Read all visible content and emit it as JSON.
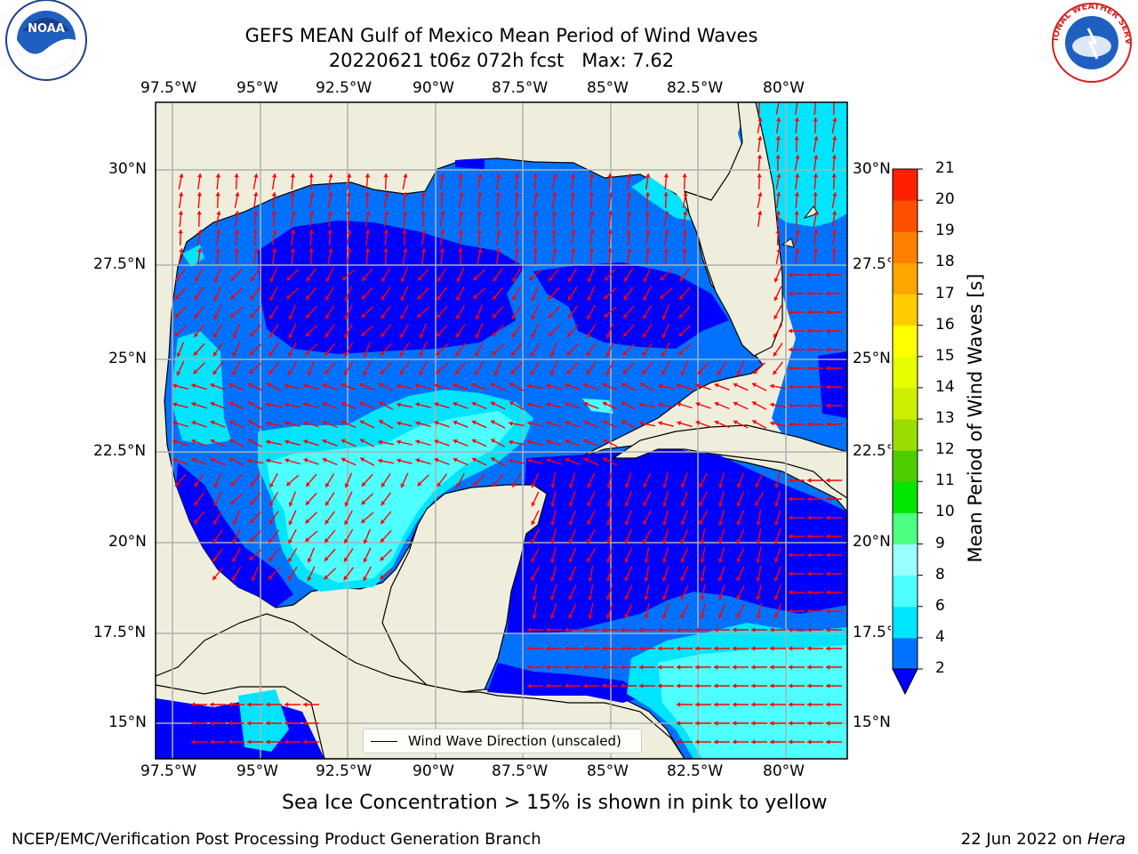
{
  "title": {
    "line1": "GEFS MEAN Gulf of Mexico Mean Period of Wind Waves",
    "line2": "20220621 t06z 072h fcst   Max: 7.62"
  },
  "axes": {
    "lon_labels": [
      "97.5°W",
      "95°W",
      "92.5°W",
      "90°W",
      "87.5°W",
      "85°W",
      "82.5°W",
      "80°W"
    ],
    "lat_labels_left": [
      "30°N",
      "27.5°N",
      "25°N",
      "22.5°N",
      "20°N",
      "17.5°N",
      "15°N"
    ],
    "lat_labels_right": [
      "30°N",
      "27.5°N",
      "25°N",
      "22.5°N",
      "20°N",
      "17.5°N",
      "15°N"
    ],
    "lon_range": [
      -98,
      -78.2
    ],
    "lat_range": [
      14,
      31.6
    ],
    "grid": true
  },
  "colorbar": {
    "label": "Mean Period of Wind Waves [s]",
    "ticks": [
      "21",
      "20",
      "19",
      "18",
      "17",
      "16",
      "15",
      "14",
      "13",
      "12",
      "11",
      "10",
      "9",
      "8",
      "6",
      "4",
      "2"
    ],
    "levels": [
      2,
      4,
      6,
      8,
      9,
      10,
      11,
      12,
      13,
      14,
      15,
      16,
      17,
      18,
      19,
      20,
      21
    ],
    "colors": [
      "#0072ff",
      "#00e5ff",
      "#4dffff",
      "#99ffff",
      "#4dff80",
      "#00e600",
      "#4dcc00",
      "#99dd00",
      "#ccee00",
      "#e6ff00",
      "#ffff00",
      "#ffcc00",
      "#ffa500",
      "#ff8000",
      "#ff5000",
      "#ff2000"
    ],
    "under_color": "#0000ff"
  },
  "legend": {
    "label": "Wind Wave Direction (unscaled)"
  },
  "colors": {
    "land": "#efeedc",
    "period_below_2": "#0000ff",
    "period_2_4": "#0072ff",
    "period_4_6": "#00e5ff",
    "period_6_8": "#4dffff",
    "arrows": "#ff0000"
  },
  "logos": {
    "left": {
      "icon": "noaa-logo",
      "text": "NOAA"
    },
    "right": {
      "icon": "national-weather-service-logo",
      "text": "NATIONAL WEATHER SERVICE"
    }
  },
  "footer": {
    "note": "Sea Ice Concentration > 15% is shown in pink to yellow",
    "credit": "NCEP/EMC/Verification Post Processing Product Generation Branch",
    "date": "22 Jun 2022 on ",
    "host": "Hera"
  }
}
